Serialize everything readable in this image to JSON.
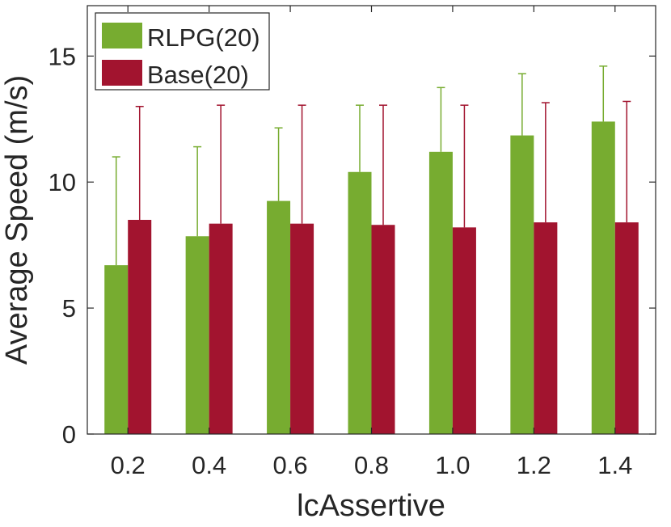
{
  "chart_data": {
    "type": "bar",
    "title": "",
    "xlabel": "lcAssertive",
    "ylabel": "Average Speed (m/s)",
    "ylim": [
      0,
      17
    ],
    "yticks": [
      0,
      5,
      10,
      15
    ],
    "categories": [
      "0.2",
      "0.4",
      "0.6",
      "0.8",
      "1.0",
      "1.2",
      "1.4"
    ],
    "series": [
      {
        "name": "RLPG(20)",
        "color": "#77ac30",
        "values": [
          6.7,
          7.85,
          9.25,
          10.4,
          11.2,
          11.85,
          12.4
        ],
        "error_upper": [
          11.0,
          11.4,
          12.15,
          13.05,
          13.75,
          14.3,
          14.6
        ]
      },
      {
        "name": "Base(20)",
        "color": "#a2142f",
        "values": [
          8.5,
          8.35,
          8.35,
          8.3,
          8.2,
          8.4,
          8.4
        ],
        "error_upper": [
          13.0,
          13.05,
          13.05,
          13.05,
          13.05,
          13.15,
          13.2
        ]
      }
    ],
    "legend_position": "top-left",
    "grid": false
  }
}
